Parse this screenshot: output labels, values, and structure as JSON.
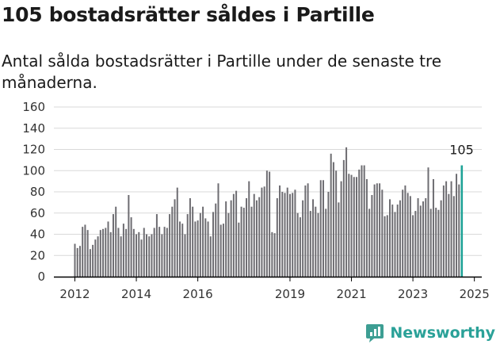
{
  "header": {
    "title": "105 bostadsrätter såldes i Partille",
    "subtitle": "Antal sålda bostadsrätter i Partille under de senaste tre månaderna."
  },
  "brand": {
    "name": "Newsworthy",
    "icon": "newsworthy-logo-icon",
    "color": "#3d9e93"
  },
  "colors": {
    "bar": "#6e6d72",
    "highlight": "#1fa397",
    "grid": "#d9d9d9",
    "axis": "#000000"
  },
  "chart_data": {
    "type": "bar",
    "title": "105 bostadsrätter såldes i Partille",
    "subtitle": "Antal sålda bostadsrätter i Partille under de senaste tre månaderna.",
    "xlabel": "",
    "ylabel": "",
    "ylim": [
      0,
      160
    ],
    "yticks": [
      0,
      20,
      40,
      60,
      80,
      100,
      120,
      140,
      160
    ],
    "xticks": [
      {
        "label": "2012",
        "index": 0
      },
      {
        "label": "2014",
        "index": 24
      },
      {
        "label": "2016",
        "index": 48
      },
      {
        "label": "2019",
        "index": 84
      },
      {
        "label": "2021",
        "index": 108
      },
      {
        "label": "2023",
        "index": 132
      },
      {
        "label": "2025",
        "index": 156
      }
    ],
    "start": "2012-01",
    "highlight_label": "105",
    "series": [
      {
        "name": "Sålda bostadsrätter",
        "values": [
          31,
          27,
          29,
          47,
          49,
          44,
          26,
          30,
          35,
          38,
          44,
          45,
          46,
          52,
          42,
          59,
          66,
          46,
          38,
          50,
          45,
          77,
          56,
          45,
          40,
          42,
          35,
          46,
          40,
          38,
          40,
          46,
          59,
          47,
          40,
          47,
          46,
          59,
          66,
          73,
          84,
          52,
          50,
          40,
          59,
          74,
          66,
          52,
          53,
          60,
          66,
          55,
          52,
          38,
          61,
          69,
          88,
          49,
          50,
          71,
          60,
          72,
          78,
          81,
          51,
          66,
          65,
          74,
          90,
          66,
          78,
          72,
          75,
          84,
          85,
          100,
          99,
          42,
          41,
          74,
          86,
          80,
          79,
          84,
          78,
          79,
          82,
          60,
          56,
          72,
          86,
          88,
          62,
          73,
          66,
          60,
          91,
          91,
          64,
          80,
          116,
          108,
          100,
          70,
          90,
          110,
          122,
          97,
          96,
          94,
          94,
          101,
          105,
          105,
          92,
          64,
          77,
          87,
          88,
          88,
          82,
          57,
          58,
          73,
          68,
          61,
          68,
          72,
          82,
          86,
          79,
          76,
          58,
          62,
          74,
          67,
          71,
          74,
          103,
          64,
          92,
          65,
          63,
          72,
          86,
          90,
          78,
          90,
          76,
          97,
          87,
          105
        ]
      }
    ]
  }
}
